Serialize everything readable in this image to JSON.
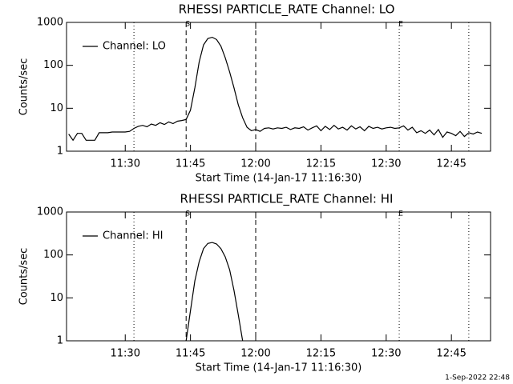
{
  "chart_data": [
    {
      "type": "line",
      "title": "RHESSI PARTICLE_RATE Channel: LO",
      "ylabel": "Counts/sec",
      "xlabel": "Start Time (14-Jan-17 11:16:30)",
      "log_y": true,
      "ylim": [
        1,
        1000
      ],
      "yticks": [
        1,
        10,
        100,
        1000
      ],
      "xlim": [
        "11:16:30",
        "12:54"
      ],
      "xticks": [
        "11:30",
        "11:45",
        "12:00",
        "12:15",
        "12:30",
        "12:45"
      ],
      "legend": "upper-left",
      "markers": [
        {
          "x": "11:32",
          "style": "dotted"
        },
        {
          "x": "11:44",
          "style": "dashed",
          "label": "S"
        },
        {
          "x": "12:00",
          "style": "dashed"
        },
        {
          "x": "12:33",
          "style": "dotted",
          "label": "E"
        },
        {
          "x": "12:49",
          "style": "dotted"
        }
      ],
      "x": [
        "11:17",
        "11:18",
        "11:19",
        "11:20",
        "11:21",
        "11:22",
        "11:23",
        "11:24",
        "11:25",
        "11:26",
        "11:27",
        "11:28",
        "11:29",
        "11:30",
        "11:31",
        "11:32",
        "11:33",
        "11:34",
        "11:35",
        "11:36",
        "11:37",
        "11:38",
        "11:39",
        "11:40",
        "11:41",
        "11:42",
        "11:43",
        "11:44",
        "11:45",
        "11:46",
        "11:47",
        "11:48",
        "11:49",
        "11:50",
        "11:51",
        "11:52",
        "11:53",
        "11:54",
        "11:55",
        "11:56",
        "11:57",
        "11:58",
        "11:59",
        "12:00",
        "12:01",
        "12:02",
        "12:03",
        "12:04",
        "12:05",
        "12:06",
        "12:07",
        "12:08",
        "12:09",
        "12:10",
        "12:11",
        "12:12",
        "12:13",
        "12:14",
        "12:15",
        "12:16",
        "12:17",
        "12:18",
        "12:19",
        "12:20",
        "12:21",
        "12:22",
        "12:23",
        "12:24",
        "12:25",
        "12:26",
        "12:27",
        "12:28",
        "12:29",
        "12:30",
        "12:31",
        "12:32",
        "12:33",
        "12:34",
        "12:35",
        "12:36",
        "12:37",
        "12:38",
        "12:39",
        "12:40",
        "12:41",
        "12:42",
        "12:43",
        "12:44",
        "12:45",
        "12:46",
        "12:47",
        "12:48",
        "12:49",
        "12:50",
        "12:51",
        "12:52"
      ],
      "series": [
        {
          "name": "Channel: LO",
          "color": "#000000",
          "values": [
            2.5,
            1.8,
            2.6,
            2.6,
            1.8,
            1.8,
            1.8,
            2.7,
            2.7,
            2.7,
            2.8,
            2.8,
            2.8,
            2.8,
            2.9,
            3.4,
            3.8,
            4.0,
            3.7,
            4.3,
            4.0,
            4.6,
            4.2,
            4.8,
            4.4,
            5.0,
            5.2,
            5.5,
            9,
            30,
            120,
            300,
            420,
            450,
            400,
            280,
            150,
            70,
            30,
            12,
            6,
            3.6,
            3.0,
            3.2,
            2.9,
            3.4,
            3.5,
            3.3,
            3.5,
            3.4,
            3.6,
            3.2,
            3.5,
            3.4,
            3.7,
            3.1,
            3.5,
            3.9,
            3.0,
            3.8,
            3.2,
            4.0,
            3.3,
            3.6,
            3.1,
            3.9,
            3.3,
            3.7,
            3.0,
            3.8,
            3.4,
            3.6,
            3.3,
            3.5,
            3.6,
            3.4,
            3.5,
            3.9,
            3.1,
            3.6,
            2.7,
            3.0,
            2.6,
            3.1,
            2.4,
            3.2,
            2.1,
            2.8,
            2.6,
            2.3,
            2.9,
            2.2,
            2.7,
            2.5,
            2.8,
            2.6
          ]
        }
      ]
    },
    {
      "type": "line",
      "title": "RHESSI PARTICLE_RATE Channel: HI",
      "ylabel": "Counts/sec",
      "xlabel": "Start Time (14-Jan-17 11:16:30)",
      "log_y": true,
      "ylim": [
        1,
        1000
      ],
      "yticks": [
        1,
        10,
        100,
        1000
      ],
      "xlim": [
        "11:16:30",
        "12:54"
      ],
      "xticks": [
        "11:30",
        "11:45",
        "12:00",
        "12:15",
        "12:30",
        "12:45"
      ],
      "legend": "upper-left",
      "markers": [
        {
          "x": "11:32",
          "style": "dotted"
        },
        {
          "x": "11:44",
          "style": "dashed",
          "label": "S"
        },
        {
          "x": "12:00",
          "style": "dashed"
        },
        {
          "x": "12:33",
          "style": "dotted",
          "label": "E"
        },
        {
          "x": "12:49",
          "style": "dotted"
        }
      ],
      "x": [
        "11:44",
        "11:45",
        "11:46",
        "11:47",
        "11:48",
        "11:49",
        "11:50",
        "11:51",
        "11:52",
        "11:53",
        "11:54",
        "11:55",
        "11:56",
        "11:57"
      ],
      "series": [
        {
          "name": "Channel: HI",
          "color": "#000000",
          "values": [
            1,
            5,
            25,
            70,
            140,
            185,
            195,
            180,
            140,
            90,
            45,
            15,
            4,
            1
          ]
        }
      ]
    }
  ],
  "footer": "1-Sep-2022 22:48"
}
